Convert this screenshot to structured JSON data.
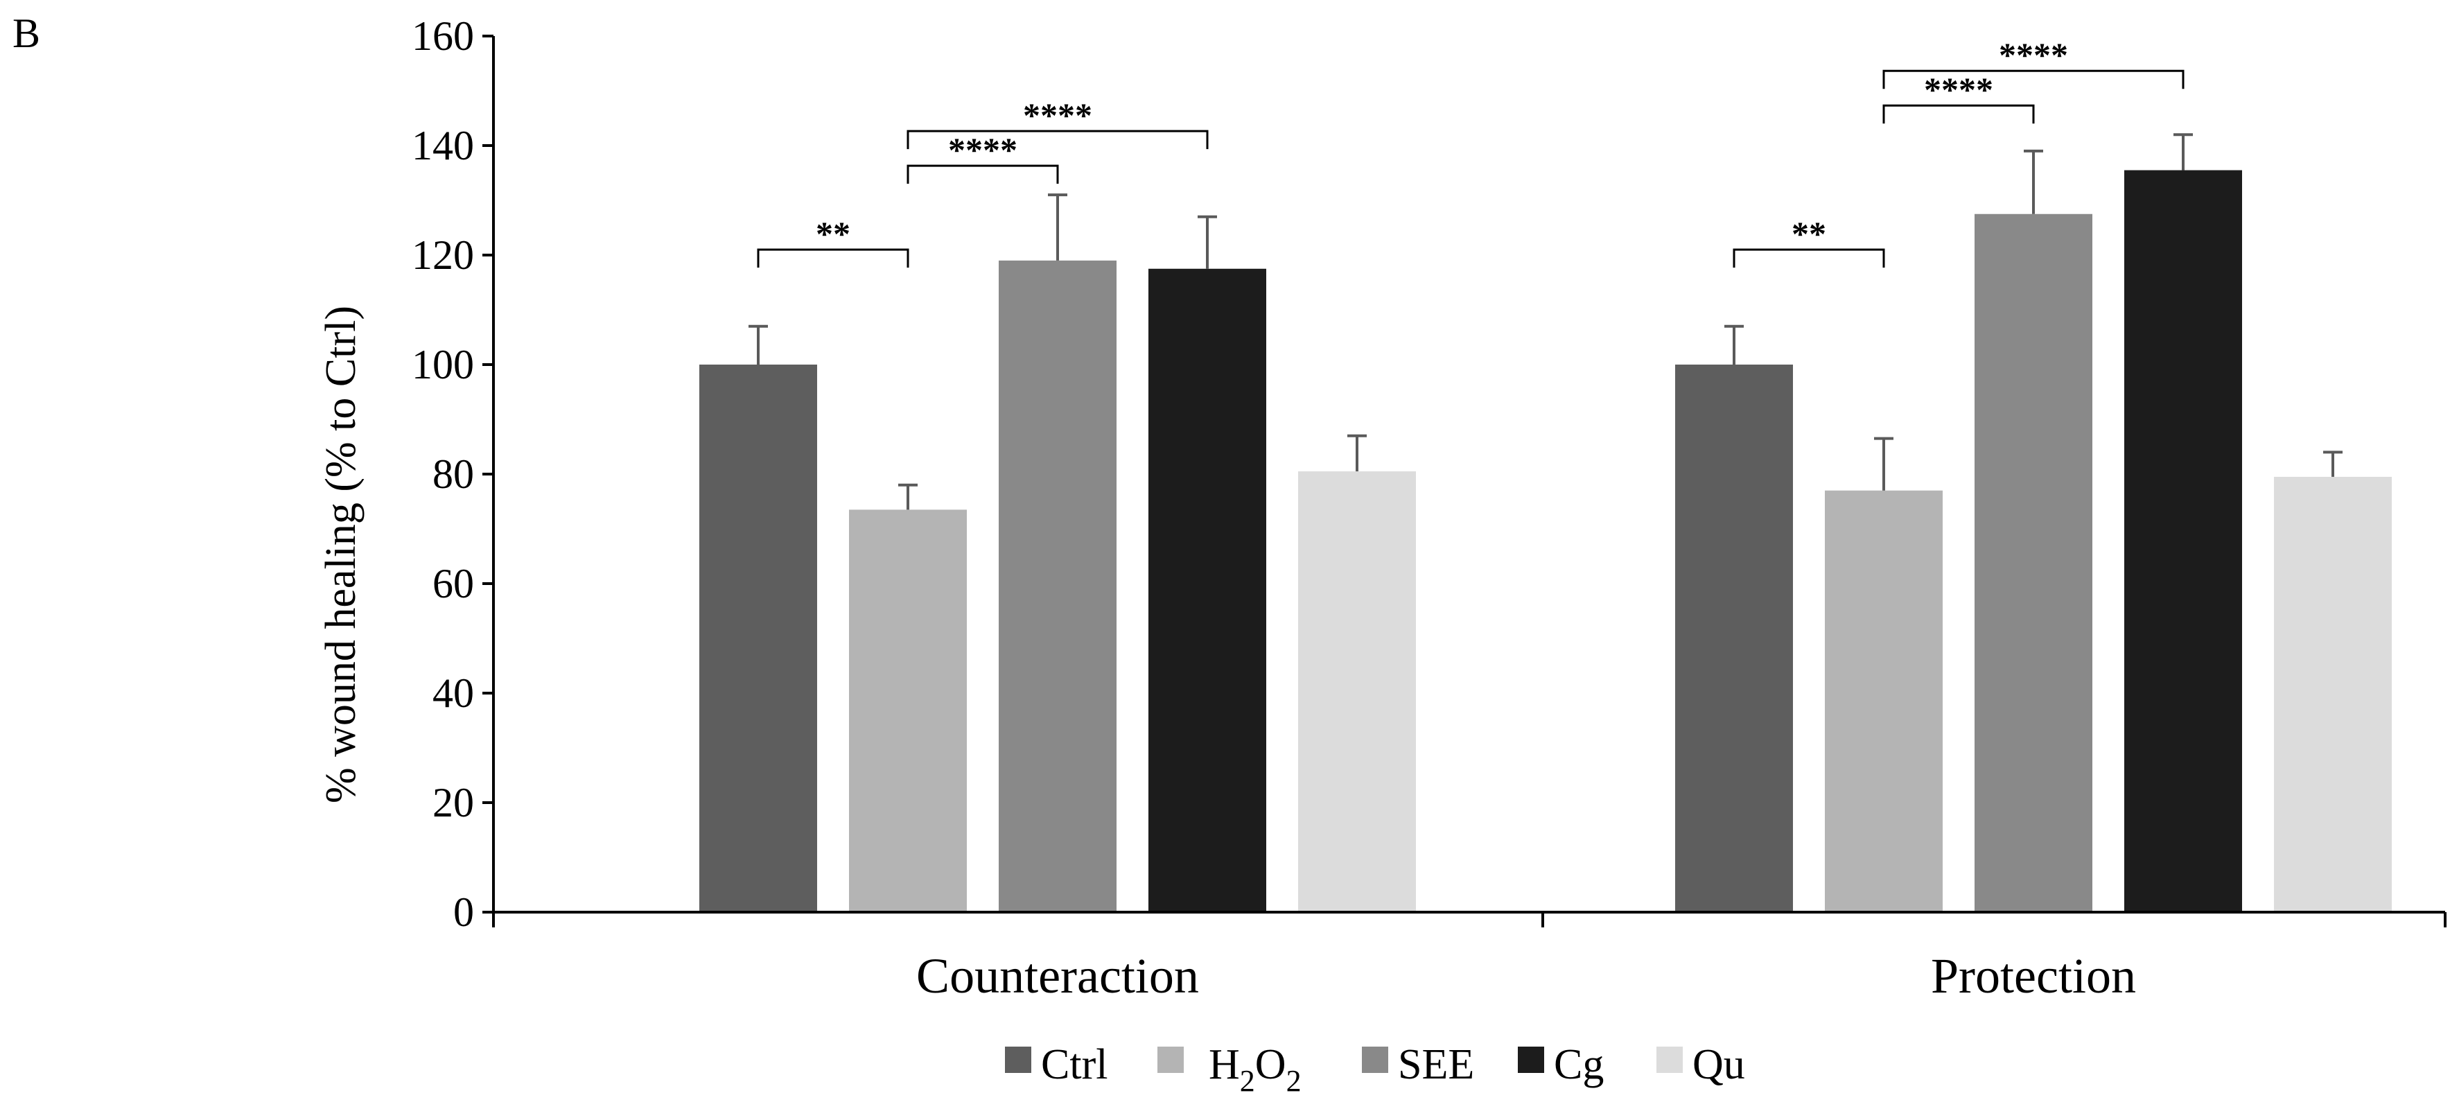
{
  "panel_label": "B",
  "chart_data": {
    "type": "bar",
    "title": "",
    "xlabel": "",
    "ylabel": "% wound healing  (% to Ctrl)",
    "ylim": [
      0,
      160
    ],
    "yticks": [
      0,
      20,
      40,
      60,
      80,
      100,
      120,
      140,
      160
    ],
    "categories": [
      "Counteraction",
      "Protection"
    ],
    "legend_position": "bottom",
    "series": [
      {
        "name": "Ctrl",
        "color": "#5e5e5e",
        "values": [
          100,
          100
        ],
        "errors": [
          7,
          7
        ]
      },
      {
        "name": "H2O2",
        "legend_label": {
          "main": "H",
          "sub1": "2",
          "mid": "O",
          "sub2": "2"
        },
        "color": "#b4b4b4",
        "values": [
          73.5,
          77
        ],
        "errors": [
          4.5,
          9.5
        ]
      },
      {
        "name": "SEE",
        "color": "#898989",
        "values": [
          119,
          127.5
        ],
        "errors": [
          12,
          11.5
        ]
      },
      {
        "name": "Cg",
        "color": "#1c1c1c",
        "values": [
          117.5,
          135.5
        ],
        "errors": [
          9.5,
          6.5
        ]
      },
      {
        "name": "Qu",
        "color": "#dcdcdc",
        "values": [
          80.5,
          79.5
        ],
        "errors": [
          6.5,
          4.5
        ]
      }
    ],
    "significance": [
      {
        "category": 0,
        "from": 0,
        "to": 1,
        "label": "**"
      },
      {
        "category": 0,
        "from": 1,
        "to": 2,
        "label": "****"
      },
      {
        "category": 0,
        "from": 1,
        "to": 3,
        "label": "****"
      },
      {
        "category": 1,
        "from": 0,
        "to": 1,
        "label": "**"
      },
      {
        "category": 1,
        "from": 1,
        "to": 2,
        "label": "****"
      },
      {
        "category": 1,
        "from": 1,
        "to": 3,
        "label": "****"
      }
    ]
  }
}
